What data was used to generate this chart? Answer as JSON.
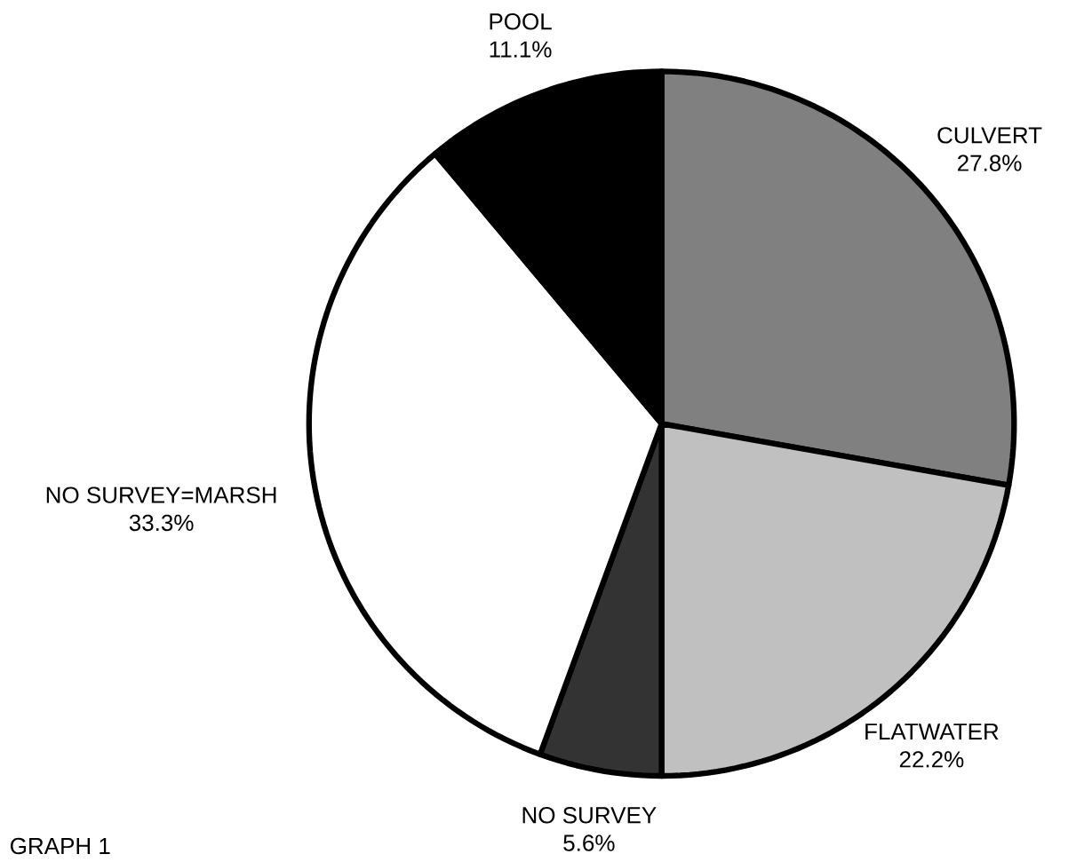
{
  "chart_data": {
    "type": "pie",
    "categories": [
      "CULVERT",
      "FLATWATER",
      "NO SURVEY",
      "NO SURVEY=MARSH",
      "POOL"
    ],
    "values": [
      27.8,
      22.2,
      5.6,
      33.3,
      11.1
    ],
    "colors": [
      "#808080",
      "#c0c0c0",
      "#333333",
      "#ffffff",
      "#000000"
    ],
    "value_labels": [
      "27.8%",
      "22.2%",
      "5.6%",
      "33.3%",
      "11.1%"
    ],
    "annotations": [
      "GRAPH 1"
    ]
  }
}
